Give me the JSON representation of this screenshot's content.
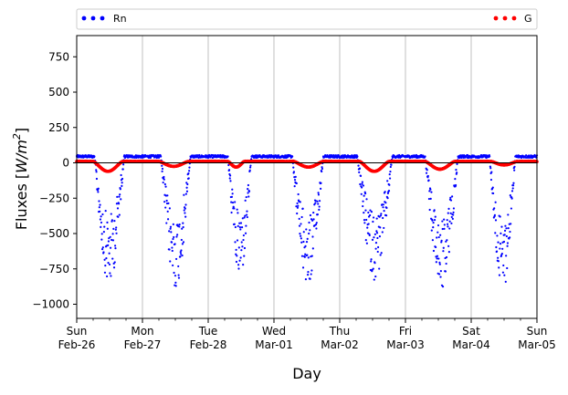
{
  "chart_data": {
    "type": "scatter",
    "title": "",
    "xlabel": "Day",
    "ylabel": "Fluxes [W/m²]",
    "ylabel_parts": {
      "main": "Fluxes [",
      "unit_base": "W/m",
      "unit_exp": "2",
      "close": "]"
    },
    "xlim": [
      0,
      7
    ],
    "ylim": [
      -1100,
      900
    ],
    "yticks": [
      -1000,
      -750,
      -500,
      -250,
      0,
      250,
      500,
      750
    ],
    "ytick_labels": [
      "−1000",
      "−750",
      "−500",
      "−250",
      "0",
      "250",
      "500",
      "750"
    ],
    "xticks": [
      {
        "x": 0,
        "day": "Sun",
        "date": "Feb-26"
      },
      {
        "x": 1,
        "day": "Mon",
        "date": "Feb-27"
      },
      {
        "x": 2,
        "day": "Tue",
        "date": "Feb-28"
      },
      {
        "x": 3,
        "day": "Wed",
        "date": "Mar-01"
      },
      {
        "x": 4,
        "day": "Thu",
        "date": "Mar-02"
      },
      {
        "x": 5,
        "day": "Fri",
        "date": "Mar-03"
      },
      {
        "x": 6,
        "day": "Sat",
        "date": "Mar-04"
      },
      {
        "x": 7,
        "day": "Sun",
        "date": "Mar-05"
      }
    ],
    "grid": "vertical",
    "zero_line": true,
    "legend": {
      "placement": "above",
      "entries": [
        {
          "name": "Rn",
          "color": "#0000ff",
          "position": "left"
        },
        {
          "name": "G",
          "color": "#ff0000",
          "position": "right"
        }
      ]
    },
    "series": [
      {
        "name": "Rn",
        "color": "#0000ff",
        "night_value": 45,
        "daytime_dips": [
          {
            "start": 0.27,
            "end": 0.72,
            "min": -870
          },
          {
            "start": 1.28,
            "end": 1.73,
            "min": -890
          },
          {
            "start": 2.3,
            "end": 2.66,
            "min": -830
          },
          {
            "start": 3.28,
            "end": 3.75,
            "min": -880
          },
          {
            "start": 4.27,
            "end": 4.8,
            "min": -830
          },
          {
            "start": 5.3,
            "end": 5.8,
            "min": -900
          },
          {
            "start": 6.28,
            "end": 6.67,
            "min": -920
          }
        ]
      },
      {
        "name": "G",
        "color": "#ff0000",
        "night_value": 10,
        "daytime_dips": [
          {
            "start": 0.25,
            "end": 0.7,
            "min": -60
          },
          {
            "start": 1.25,
            "end": 1.7,
            "min": -25
          },
          {
            "start": 2.3,
            "end": 2.55,
            "min": -30
          },
          {
            "start": 3.3,
            "end": 3.75,
            "min": -30
          },
          {
            "start": 4.3,
            "end": 4.75,
            "min": -60
          },
          {
            "start": 5.3,
            "end": 5.75,
            "min": -45
          },
          {
            "start": 6.3,
            "end": 6.7,
            "min": -15
          }
        ]
      }
    ]
  }
}
